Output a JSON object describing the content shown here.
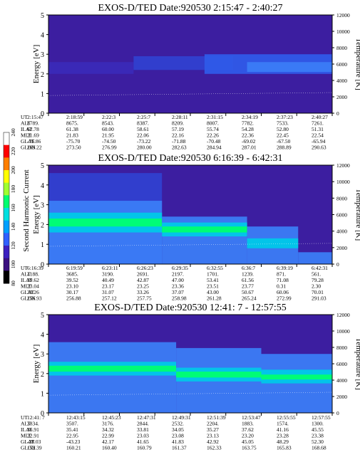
{
  "colorbar": {
    "label": "Second Harmonic Current",
    "ticks": [
      "240",
      "220",
      "200",
      "180",
      "160",
      "140",
      "120",
      "100",
      "80"
    ],
    "range": [
      80,
      240
    ],
    "colors": [
      "#ffffff",
      "#ff0000",
      "#ff7f00",
      "#ffff00",
      "#a0ff30",
      "#00ff70",
      "#00e0e0",
      "#00a0ff",
      "#3060ff",
      "#3c20c0",
      "#3a1080",
      "#000000"
    ]
  },
  "chart_data": [
    {
      "type": "heatmap",
      "title": "EXOS-D/TED   Date:920530  2:15:47 - 2:40:27",
      "ylabel": "Energy [eV]",
      "ylabel_right": "Temperature [K]",
      "ylim": [
        0,
        5
      ],
      "ylim_right": [
        0,
        12000
      ],
      "yticks": [
        "0",
        "1",
        "2",
        "3",
        "4",
        "5"
      ],
      "yticks_right": [
        "0",
        "2000",
        "4000",
        "6000",
        "8000",
        "10000",
        "12000"
      ],
      "background": "#3c1ea0",
      "bands": [
        {
          "t0": 0.0,
          "t1": 0.3,
          "e0": 2.0,
          "e1": 2.6,
          "color": "#3a2ab8"
        },
        {
          "t0": 0.3,
          "t1": 0.65,
          "e0": 2.2,
          "e1": 2.9,
          "color": "#3040d0"
        },
        {
          "t0": 0.55,
          "t1": 1.0,
          "e0": 2.0,
          "e1": 3.0,
          "color": "#2f5ae8"
        },
        {
          "t0": 0.7,
          "t1": 1.0,
          "e0": 2.1,
          "e1": 2.6,
          "color": "#3b7cf5"
        }
      ],
      "ephemeris_rows": [
        "UT",
        "ALT",
        "ILAT",
        "MLT",
        "GLAT",
        "GLON"
      ],
      "ephemeris": [
        [
          "2:15:47",
          "2:18:59",
          "2:22:3",
          "2:25:7",
          "2:28:11",
          "2:31:15",
          "2:34:19",
          "2:37:23",
          "2:40:27"
        ],
        [
          "8789.",
          "8675.",
          "8543.",
          "8387.",
          "8209.",
          "8007.",
          "7782.",
          "7533.",
          "7261."
        ],
        [
          "62.78",
          "61.38",
          "60.00",
          "58.61",
          "57.19",
          "55.74",
          "54.28",
          "52.80",
          "51.31"
        ],
        [
          "21.69",
          "21.83",
          "21.95",
          "22.06",
          "22.16",
          "22.26",
          "22.36",
          "22.45",
          "22.54"
        ],
        [
          "-76.86",
          "-75.70",
          "-74.50",
          "-73.22",
          "-71.88",
          "-70.48",
          "-69.02",
          "-67.50",
          "-65.94"
        ],
        [
          "269.22",
          "273.50",
          "276.99",
          "280.00",
          "282.63",
          "284.94",
          "287.01",
          "288.89",
          "290.63"
        ]
      ]
    },
    {
      "type": "heatmap",
      "title": "EXOS-D/TED   Date:920530  6:16:39 - 6:42:31",
      "ylabel": "Energy [eV]",
      "ylabel_right": "Temperature [K]",
      "ylim": [
        0,
        5
      ],
      "ylim_right": [
        0,
        12000
      ],
      "yticks": [
        "0",
        "1",
        "2",
        "3",
        "4",
        "5"
      ],
      "yticks_right": [
        "0",
        "2000",
        "4000",
        "6000",
        "8000",
        "10000",
        "12000"
      ],
      "background": "#3c1ea0",
      "bands": [
        {
          "t0": 0.0,
          "t1": 0.4,
          "e0": 0.0,
          "e1": 4.6,
          "color": "#3040d0"
        },
        {
          "t0": 0.0,
          "t1": 0.4,
          "e0": 0.0,
          "e1": 3.2,
          "color": "#3b7cf5"
        },
        {
          "t0": 0.0,
          "t1": 0.4,
          "e0": 1.6,
          "e1": 2.6,
          "color": "#00c8e8"
        },
        {
          "t0": 0.0,
          "t1": 0.4,
          "e0": 1.9,
          "e1": 2.3,
          "color": "#00ff70"
        },
        {
          "t0": 0.4,
          "t1": 0.7,
          "e0": 0.0,
          "e1": 2.4,
          "color": "#3b7cf5"
        },
        {
          "t0": 0.4,
          "t1": 0.7,
          "e0": 1.4,
          "e1": 2.1,
          "color": "#00c8e8"
        },
        {
          "t0": 0.4,
          "t1": 0.7,
          "e0": 1.6,
          "e1": 1.9,
          "color": "#00ff70"
        },
        {
          "t0": 0.7,
          "t1": 0.88,
          "e0": 0.0,
          "e1": 1.9,
          "color": "#3b7cf5"
        },
        {
          "t0": 0.7,
          "t1": 0.88,
          "e0": 0.8,
          "e1": 1.3,
          "color": "#00c8e8"
        },
        {
          "t0": 0.88,
          "t1": 1.0,
          "e0": 0.0,
          "e1": 0.6,
          "color": "#3b7cf5"
        }
      ],
      "ephemeris_rows": [
        "UT",
        "ALT",
        "ILAT",
        "MLT",
        "GLAT",
        "GLON"
      ],
      "ephemeris": [
        [
          "6:16:39",
          "6:19:59",
          "6:23:11",
          "6:26:23",
          "6:29:35",
          "6:32:55",
          "6:36:7",
          "6:39:19",
          "6:42:31"
        ],
        [
          "4188.",
          "3685.",
          "3190.",
          "2691.",
          "2197.",
          "1701.",
          "1239.",
          "871.",
          "561."
        ],
        [
          "39.62",
          "39.52",
          "40.49",
          "42.87",
          "47.00",
          "53.41",
          "61.56",
          "71.08",
          "79.28"
        ],
        [
          "23.04",
          "23.10",
          "23.17",
          "23.25",
          "23.36",
          "23.51",
          "23.77",
          "0.31",
          "2.30"
        ],
        [
          "30.26",
          "30.17",
          "31.07",
          "33.26",
          "37.07",
          "43.00",
          "50.67",
          "60.06",
          "70.01"
        ],
        [
          "256.93",
          "256.88",
          "257.12",
          "257.75",
          "258.98",
          "261.28",
          "265.24",
          "272.99",
          "291.03"
        ]
      ]
    },
    {
      "type": "heatmap",
      "title": "EXOS-D/TED   Date:920530  12:41: 7 - 12:57:55",
      "ylabel": "Energy [eV]",
      "ylabel_right": "Temperature [K]",
      "ylim": [
        0,
        5
      ],
      "ylim_right": [
        0,
        12000
      ],
      "yticks": [
        "0",
        "1",
        "2",
        "3",
        "4",
        "5"
      ],
      "yticks_right": [
        "0",
        "2000",
        "4000",
        "6000",
        "8000",
        "10000",
        "12000"
      ],
      "background": "#3c1ea0",
      "bands": [
        {
          "t0": 0.0,
          "t1": 0.45,
          "e0": 0.0,
          "e1": 3.6,
          "color": "#3b7cf5"
        },
        {
          "t0": 0.0,
          "t1": 0.45,
          "e0": 1.9,
          "e1": 2.6,
          "color": "#00c8e8"
        },
        {
          "t0": 0.0,
          "t1": 0.45,
          "e0": 2.1,
          "e1": 2.4,
          "color": "#00ff70"
        },
        {
          "t0": 0.45,
          "t1": 0.75,
          "e0": 0.0,
          "e1": 3.3,
          "color": "#3b7cf5"
        },
        {
          "t0": 0.45,
          "t1": 0.75,
          "e0": 1.6,
          "e1": 2.3,
          "color": "#00c8e8"
        },
        {
          "t0": 0.45,
          "t1": 0.75,
          "e0": 1.8,
          "e1": 2.1,
          "color": "#00ff70"
        },
        {
          "t0": 0.75,
          "t1": 1.0,
          "e0": 0.0,
          "e1": 3.0,
          "color": "#3b7cf5"
        },
        {
          "t0": 0.75,
          "t1": 1.0,
          "e0": 1.5,
          "e1": 2.2,
          "color": "#00c8e8"
        },
        {
          "t0": 0.75,
          "t1": 1.0,
          "e0": 1.7,
          "e1": 1.95,
          "color": "#00ff70"
        }
      ],
      "ephemeris_rows": [
        "UT",
        "ALT",
        "ILAT",
        "MLT",
        "GLAT",
        "GLON"
      ],
      "ephemeris": [
        [
          "12:41: 7",
          "12:43:15",
          "12:45:23",
          "12:47:31",
          "12:49:31",
          "12:51:39",
          "12:53:47",
          "12:55:55",
          "12:57:55"
        ],
        [
          "3834.",
          "3507.",
          "3176.",
          "2844.",
          "2532.",
          "2204.",
          "1883.",
          "1574.",
          "1300."
        ],
        [
          "36.91",
          "35.41",
          "34.32",
          "33.81",
          "34.05",
          "35.27",
          "37.62",
          "41.16",
          "45.55"
        ],
        [
          "22.91",
          "22.95",
          "22.99",
          "23.03",
          "23.08",
          "23.13",
          "23.20",
          "23.28",
          "23.38"
        ],
        [
          "-28.03",
          "-43.23",
          "42.17",
          "41.65",
          "41.83",
          "42.92",
          "45.05",
          "48.29",
          "52.30"
        ],
        [
          "152.39",
          "160.21",
          "160.40",
          "160.79",
          "161.37",
          "162.33",
          "163.75",
          "165.83",
          "168.68"
        ]
      ]
    }
  ]
}
